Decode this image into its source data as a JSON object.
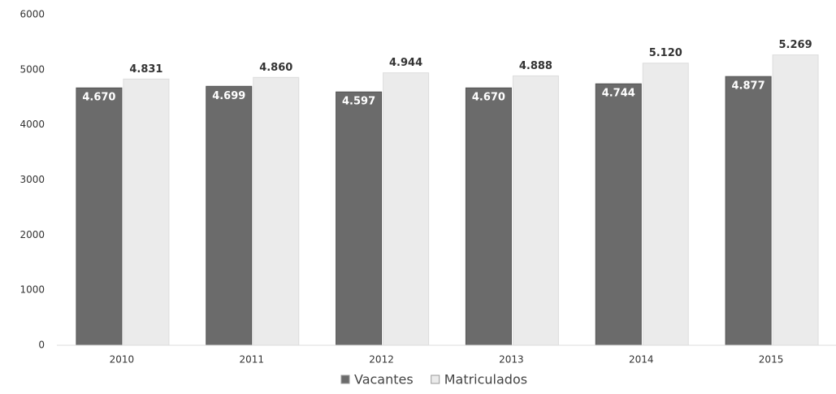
{
  "chart_data": {
    "type": "bar",
    "categories": [
      "2010",
      "2011",
      "2012",
      "2013",
      "2014",
      "2015"
    ],
    "series": [
      {
        "name": "Vacantes",
        "color": "#6b6b6b",
        "values": [
          4670,
          4699,
          4597,
          4670,
          4744,
          4877
        ],
        "value_labels": [
          "4.670",
          "4.699",
          "4.597",
          "4.670",
          "4.744",
          "4.877"
        ]
      },
      {
        "name": "Matriculados",
        "color": "#ebebeb",
        "values": [
          4831,
          4860,
          4944,
          4888,
          5120,
          5269
        ],
        "value_labels": [
          "4.831",
          "4.860",
          "4.944",
          "4.888",
          "5.120",
          "5.269"
        ]
      }
    ],
    "ylim": [
      0,
      6000
    ],
    "yticks": [
      0,
      1000,
      2000,
      3000,
      4000,
      5000,
      6000
    ],
    "grid": false,
    "legend": "bottom"
  }
}
